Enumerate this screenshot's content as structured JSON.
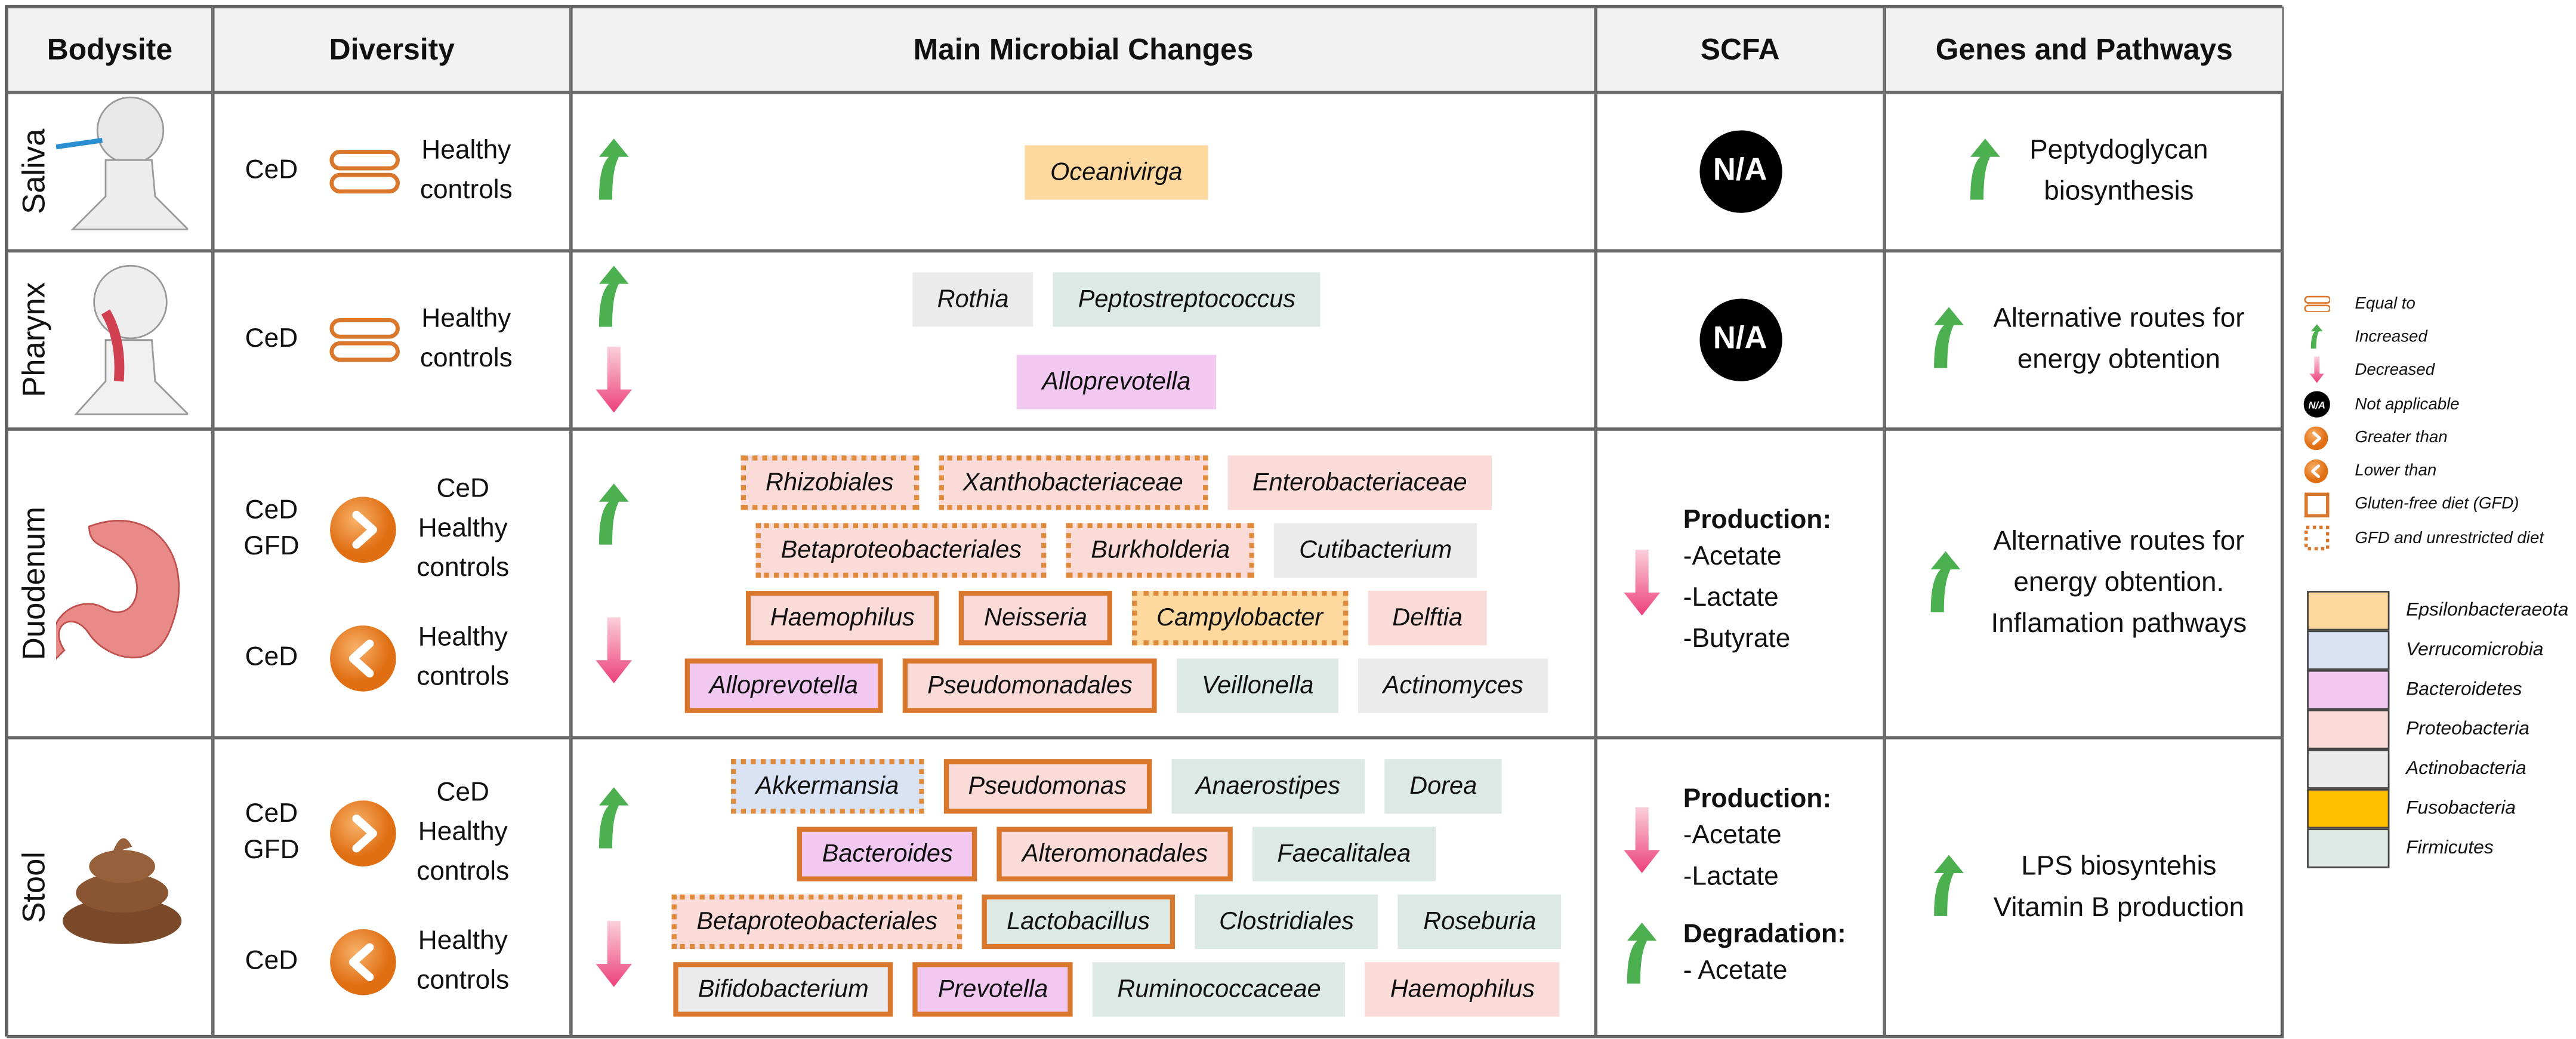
{
  "header": [
    "Bodysite",
    "Diversity",
    "Main Microbial Changes",
    "SCFA",
    "Genes and Pathways"
  ],
  "rows": [
    {
      "bodysite": "Saliva",
      "diversity": [
        {
          "left": "CeD",
          "relation": "equal",
          "right": "Healthy\ncontrols"
        }
      ],
      "changes": [
        {
          "direction": "up",
          "lines": [
            [
              {
                "name": "Oceanivirga",
                "color": "#fdd9a0",
                "border": "none"
              }
            ]
          ]
        }
      ],
      "scfa": {
        "badge": "N/A"
      },
      "genes": {
        "direction": "up",
        "text": "Peptydoglycan\nbiosynthesis"
      }
    },
    {
      "bodysite": "Pharynx",
      "diversity": [
        {
          "left": "CeD",
          "relation": "equal",
          "right": "Healthy\ncontrols"
        }
      ],
      "changes": [
        {
          "direction": "up",
          "lines": [
            [
              {
                "name": "Rothia",
                "color": "#ebebeb",
                "border": "none"
              },
              {
                "name": "Peptostreptococcus",
                "color": "#dce9e5",
                "border": "none"
              }
            ]
          ]
        },
        {
          "direction": "down",
          "lines": [
            [
              {
                "name": "Alloprevotella",
                "color": "#f1c8f0",
                "border": "none"
              }
            ]
          ]
        }
      ],
      "scfa": {
        "badge": "N/A"
      },
      "genes": {
        "direction": "up",
        "text": "Alternative routes for\nenergy obtention"
      }
    },
    {
      "bodysite": "Duodenum",
      "diversity": [
        {
          "left": "CeD\nGFD",
          "relation": "greater",
          "right": "CeD\nHealthy\ncontrols"
        },
        {
          "left": "CeD",
          "relation": "lower",
          "right": "Healthy\ncontrols"
        }
      ],
      "changes": [
        {
          "direction": "up",
          "lines": [
            [
              {
                "name": "Rhizobiales",
                "color": "#fadbd8",
                "border": "dotted"
              },
              {
                "name": "Xanthobacteriaceae",
                "color": "#fadbd8",
                "border": "dotted"
              },
              {
                "name": "Enterobacteriaceae",
                "color": "#fadbd8",
                "border": "none"
              }
            ],
            [
              {
                "name": "Betaproteobacteriales",
                "color": "#fadbd8",
                "border": "dotted"
              },
              {
                "name": "Burkholderia",
                "color": "#fadbd8",
                "border": "dotted"
              },
              {
                "name": "Cutibacterium",
                "color": "#ebebeb",
                "border": "none"
              }
            ]
          ]
        },
        {
          "direction": "down",
          "lines": [
            [
              {
                "name": "Haemophilus",
                "color": "#fadbd8",
                "border": "solid"
              },
              {
                "name": "Neisseria",
                "color": "#fadbd8",
                "border": "solid"
              },
              {
                "name": "Campylobacter",
                "color": "#fdd9a0",
                "border": "dotted"
              },
              {
                "name": "Delftia",
                "color": "#fadbd8",
                "border": "none"
              }
            ],
            [
              {
                "name": "Alloprevotella",
                "color": "#f1c8f0",
                "border": "solid"
              },
              {
                "name": "Pseudomonadales",
                "color": "#fadbd8",
                "border": "solid"
              },
              {
                "name": "Veillonella",
                "color": "#dce9e5",
                "border": "none"
              },
              {
                "name": "Actinomyces",
                "color": "#ebebeb",
                "border": "none"
              }
            ]
          ]
        }
      ],
      "scfa": {
        "groups": [
          {
            "direction": "down",
            "label": "Production:",
            "items": [
              "-Acetate",
              "-Lactate",
              "-Butyrate"
            ]
          }
        ]
      },
      "genes": {
        "direction": "up",
        "text": "Alternative routes for\nenergy obtention.\nInflamation pathways"
      }
    },
    {
      "bodysite": "Stool",
      "diversity": [
        {
          "left": "CeD\nGFD",
          "relation": "greater",
          "right": "CeD\nHealthy\ncontrols"
        },
        {
          "left": "CeD",
          "relation": "lower",
          "right": "Healthy\ncontrols"
        }
      ],
      "changes": [
        {
          "direction": "up",
          "lines": [
            [
              {
                "name": "Akkermansia",
                "color": "#dae3f3",
                "border": "dotted"
              },
              {
                "name": "Pseudomonas",
                "color": "#fadbd8",
                "border": "solid"
              },
              {
                "name": "Anaerostipes",
                "color": "#dce9e5",
                "border": "none"
              },
              {
                "name": "Dorea",
                "color": "#dce9e5",
                "border": "none"
              }
            ],
            [
              {
                "name": "Bacteroides",
                "color": "#f1c8f0",
                "border": "solid"
              },
              {
                "name": "Alteromonadales",
                "color": "#fadbd8",
                "border": "solid"
              },
              {
                "name": "Faecalitalea",
                "color": "#dce9e5",
                "border": "none"
              }
            ]
          ]
        },
        {
          "direction": "down",
          "lines": [
            [
              {
                "name": "Betaproteobacteriales",
                "color": "#fadbd8",
                "border": "dotted"
              },
              {
                "name": "Lactobacillus",
                "color": "#dce9e5",
                "border": "solid"
              },
              {
                "name": "Clostridiales",
                "color": "#dce9e5",
                "border": "none"
              },
              {
                "name": "Roseburia",
                "color": "#dce9e5",
                "border": "none"
              }
            ],
            [
              {
                "name": "Bifidobacterium",
                "color": "#ebebeb",
                "border": "solid"
              },
              {
                "name": "Prevotella",
                "color": "#f1c8f0",
                "border": "solid"
              },
              {
                "name": "Ruminococcaceae",
                "color": "#dce9e5",
                "border": "none"
              },
              {
                "name": "Haemophilus",
                "color": "#fadbd8",
                "border": "none"
              }
            ]
          ]
        }
      ],
      "scfa": {
        "groups": [
          {
            "direction": "down",
            "label": "Production:",
            "items": [
              "-Acetate",
              "-Lactate"
            ]
          },
          {
            "direction": "up",
            "label": "Degradation:",
            "items": [
              "- Acetate"
            ]
          }
        ]
      },
      "genes": {
        "direction": "up",
        "text": "LPS biosyntehis\nVitamin B production"
      }
    }
  ],
  "legend": {
    "symbols": [
      {
        "symbol": "equal",
        "label": "Equal to"
      },
      {
        "symbol": "up",
        "label": "Increased"
      },
      {
        "symbol": "down",
        "label": "Decreased"
      },
      {
        "symbol": "na",
        "label": "Not applicable"
      },
      {
        "symbol": "greater",
        "label": "Greater than"
      },
      {
        "symbol": "lower",
        "label": "Lower than"
      },
      {
        "symbol": "solid",
        "label": "Gluten-free diet (GFD)"
      },
      {
        "symbol": "dotted",
        "label": "GFD and unrestricted diet"
      }
    ],
    "phyla": [
      {
        "name": "Epsilonbacteraeota",
        "color": "#fdd9a0"
      },
      {
        "name": "Verrucomicrobia",
        "color": "#dae3f3"
      },
      {
        "name": "Bacteroidetes",
        "color": "#f1c8f0"
      },
      {
        "name": "Proteobacteria",
        "color": "#fadbd8"
      },
      {
        "name": "Actinobacteria",
        "color": "#ebebeb"
      },
      {
        "name": "Fusobacteria",
        "color": "#ffc000"
      },
      {
        "name": "Firmicutes",
        "color": "#dce9e5"
      }
    ]
  }
}
